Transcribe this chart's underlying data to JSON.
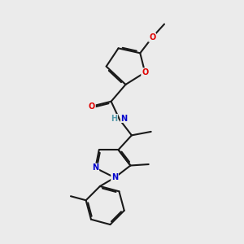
{
  "bg_color": "#ebebeb",
  "bond_color": "#1a1a1a",
  "bond_width": 1.5,
  "dbo": 0.055,
  "atom_colors": {
    "O": "#e00000",
    "N": "#0000cc",
    "H_N": "#5599aa",
    "C": "#1a1a1a"
  },
  "font_size": 7.0
}
